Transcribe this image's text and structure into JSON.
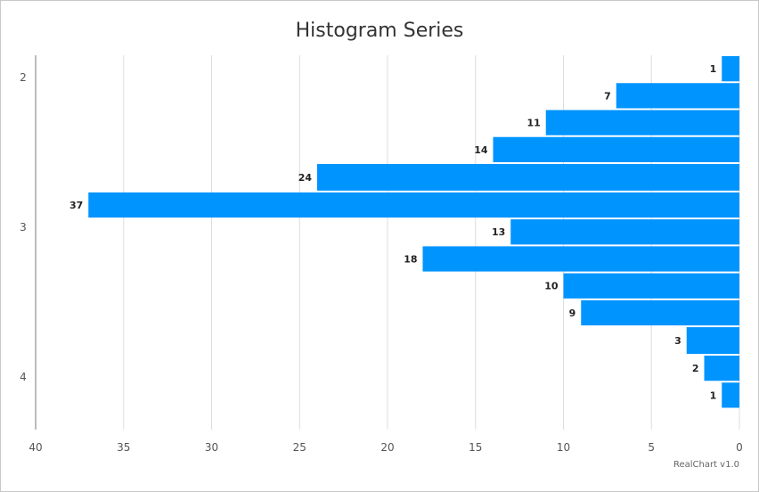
{
  "chart_data": {
    "type": "bar",
    "orientation": "horizontal",
    "title": "Histogram Series",
    "credit": "RealChart v1.0",
    "x_axis": {
      "reversed": true,
      "range": [
        0,
        40
      ],
      "ticks": [
        40,
        35,
        30,
        25,
        20,
        15,
        10,
        5,
        0
      ],
      "grid": true
    },
    "y_axis": {
      "range": [
        1.85,
        4.35
      ],
      "ticks": [
        2,
        3,
        4
      ]
    },
    "bar_color": "#0094ff",
    "bins": [
      {
        "from": 1.85,
        "to": 2.03,
        "value": 1
      },
      {
        "from": 2.03,
        "to": 2.21,
        "value": 7
      },
      {
        "from": 2.21,
        "to": 2.39,
        "value": 11
      },
      {
        "from": 2.39,
        "to": 2.57,
        "value": 14
      },
      {
        "from": 2.57,
        "to": 2.76,
        "value": 24
      },
      {
        "from": 2.76,
        "to": 2.94,
        "value": 37
      },
      {
        "from": 2.94,
        "to": 3.12,
        "value": 13
      },
      {
        "from": 3.12,
        "to": 3.3,
        "value": 18
      },
      {
        "from": 3.3,
        "to": 3.48,
        "value": 10
      },
      {
        "from": 3.48,
        "to": 3.66,
        "value": 9
      },
      {
        "from": 3.66,
        "to": 3.85,
        "value": 3
      },
      {
        "from": 3.85,
        "to": 4.03,
        "value": 2
      },
      {
        "from": 4.03,
        "to": 4.21,
        "value": 1
      }
    ]
  }
}
